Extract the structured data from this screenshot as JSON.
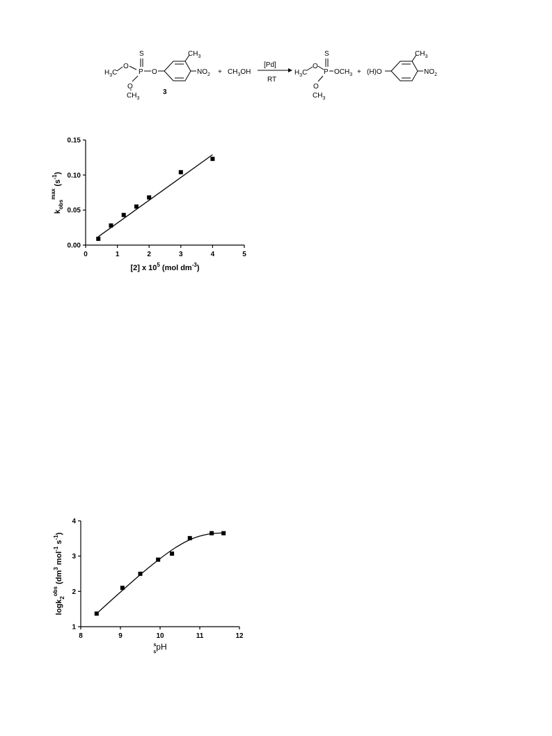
{
  "reaction": {
    "reactant_label": "3",
    "methanol": "CH3OH",
    "plus_1": "+",
    "plus_2": "+",
    "catalyst": "[Pd]",
    "condition": "RT",
    "atoms": {
      "S": "S",
      "P": "P",
      "O": "O",
      "CH3": "CH3",
      "H3C": "H3C",
      "NO2": "NO2",
      "OCH3": "OCH3",
      "HO": "(H)O"
    }
  },
  "chart_data": [
    {
      "type": "scatter",
      "title": "",
      "xlabel": "[2] x 10^5 (mol dm^-3)",
      "ylabel": "k_obs^max (s^-1)",
      "xlim": [
        0,
        5
      ],
      "ylim": [
        0,
        0.15
      ],
      "xticks": [
        "0",
        "1",
        "2",
        "3",
        "4",
        "5"
      ],
      "yticks": [
        "0.00",
        "0.05",
        "0.10",
        "0.15"
      ],
      "series": [
        {
          "x": [
            0.4,
            0.8,
            1.2,
            1.6,
            2.0,
            3.0,
            4.0
          ],
          "values": [
            0.009,
            0.028,
            0.043,
            0.055,
            0.068,
            0.104,
            0.123
          ]
        }
      ],
      "fit": {
        "kind": "linear",
        "x": [
          0.4,
          4.0
        ],
        "y": [
          0.012,
          0.129
        ]
      },
      "grid": false
    },
    {
      "type": "scatter",
      "title": "",
      "xlabel": "s s pH",
      "ylabel": "logk2^obs (dm^3 mol^-1 s^-1)",
      "xlim": [
        8,
        12
      ],
      "ylim": [
        1,
        4
      ],
      "xticks": [
        "8",
        "9",
        "10",
        "11",
        "12"
      ],
      "yticks": [
        "1",
        "2",
        "3",
        "4"
      ],
      "series": [
        {
          "x": [
            8.4,
            9.05,
            9.5,
            9.95,
            10.3,
            10.75,
            11.3,
            11.6
          ],
          "values": [
            1.37,
            2.1,
            2.5,
            2.9,
            3.07,
            3.51,
            3.65,
            3.65
          ]
        }
      ],
      "fit": {
        "kind": "curve",
        "x": [
          8.4,
          8.8,
          9.2,
          9.6,
          10.0,
          10.4,
          10.8,
          11.2,
          11.6
        ],
        "y": [
          1.37,
          1.78,
          2.18,
          2.57,
          2.93,
          3.25,
          3.49,
          3.62,
          3.66
        ]
      },
      "grid": false
    }
  ]
}
